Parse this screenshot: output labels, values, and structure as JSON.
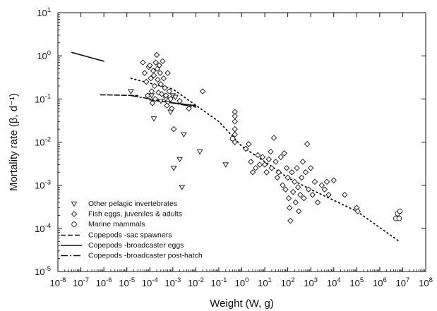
{
  "chart_data": {
    "type": "scatter",
    "title": "",
    "xlabel": "Weight (W, g)",
    "ylabel": "Mortality rate (β, d⁻¹)",
    "xscale": "log",
    "yscale": "log",
    "xlim": [
      1e-08,
      100000000.0
    ],
    "ylim": [
      1e-05,
      10
    ],
    "x_ticks": [
      {
        "v": 1e-08,
        "b": "10",
        "e": "-8"
      },
      {
        "v": 1e-07,
        "b": "10",
        "e": "-7"
      },
      {
        "v": 1e-06,
        "b": "10",
        "e": "-6"
      },
      {
        "v": 1e-05,
        "b": "10",
        "e": "-5"
      },
      {
        "v": 0.0001,
        "b": "10",
        "e": "-4"
      },
      {
        "v": 0.001,
        "b": "10",
        "e": "-3"
      },
      {
        "v": 0.01,
        "b": "10",
        "e": "-2"
      },
      {
        "v": 0.1,
        "b": "10",
        "e": "-1"
      },
      {
        "v": 1,
        "b": "10",
        "e": "0"
      },
      {
        "v": 10,
        "b": "10",
        "e": "1"
      },
      {
        "v": 100,
        "b": "10",
        "e": "2"
      },
      {
        "v": 1000,
        "b": "10",
        "e": "3"
      },
      {
        "v": 10000.0,
        "b": "10",
        "e": "4"
      },
      {
        "v": 100000.0,
        "b": "10",
        "e": "5"
      },
      {
        "v": 1000000.0,
        "b": "10",
        "e": "6"
      },
      {
        "v": 10000000.0,
        "b": "10",
        "e": "7"
      },
      {
        "v": 100000000.0,
        "b": "10",
        "e": "8"
      }
    ],
    "y_ticks": [
      {
        "v": 1e-05,
        "b": "10",
        "e": "-5"
      },
      {
        "v": 0.0001,
        "b": "10",
        "e": "-4"
      },
      {
        "v": 0.001,
        "b": "10",
        "e": "-3"
      },
      {
        "v": 0.01,
        "b": "10",
        "e": "-2"
      },
      {
        "v": 0.1,
        "b": "10",
        "e": "-1"
      },
      {
        "v": 1,
        "b": "10",
        "e": "0"
      },
      {
        "v": 10,
        "b": "10",
        "e": "1"
      }
    ],
    "grid": false,
    "legend_position": "bottom-left",
    "marker_series": [
      {
        "name": "Other pelagic invertebrates",
        "marker": "triangle-down",
        "points": [
          [
            1.5e-05,
            0.15
          ],
          [
            0.00012,
            0.12
          ],
          [
            0.00015,
            0.035
          ],
          [
            0.0003,
            0.09
          ],
          [
            0.0005,
            0.1
          ],
          [
            0.0006,
            0.08
          ],
          [
            0.0008,
            0.05
          ],
          [
            0.001,
            0.12
          ],
          [
            0.0013,
            0.11
          ],
          [
            0.0011,
            0.0025
          ],
          [
            0.002,
            0.004
          ],
          [
            0.0025,
            0.0009
          ],
          [
            0.003,
            0.015
          ],
          [
            0.015,
            0.006
          ],
          [
            0.2,
            0.003
          ]
        ]
      },
      {
        "name": "Fish eggs, juveniles & adults",
        "marker": "diamond",
        "points": [
          [
            5e-05,
            0.7
          ],
          [
            6e-05,
            0.4
          ],
          [
            7e-05,
            0.25
          ],
          [
            8e-05,
            0.12
          ],
          [
            9e-05,
            0.55
          ],
          [
            0.0001,
            0.6
          ],
          [
            0.00011,
            0.3
          ],
          [
            0.00012,
            0.15
          ],
          [
            0.00013,
            0.08
          ],
          [
            0.00014,
            0.45
          ],
          [
            0.00015,
            0.35
          ],
          [
            0.00016,
            0.2
          ],
          [
            0.00017,
            0.1
          ],
          [
            0.00018,
            0.7
          ],
          [
            0.0002,
            1.05
          ],
          [
            0.00021,
            0.5
          ],
          [
            0.00022,
            0.28
          ],
          [
            0.00024,
            0.14
          ],
          [
            0.00026,
            0.6
          ],
          [
            0.00028,
            0.4
          ],
          [
            0.0003,
            0.22
          ],
          [
            0.00033,
            0.13
          ],
          [
            0.00036,
            0.75
          ],
          [
            0.0004,
            0.3
          ],
          [
            0.00045,
            0.18
          ],
          [
            0.0005,
            0.12
          ],
          [
            0.00055,
            0.07
          ],
          [
            0.0006,
            0.4
          ],
          [
            0.0007,
            0.15
          ],
          [
            0.0008,
            0.1
          ],
          [
            0.0009,
            0.06
          ],
          [
            0.0011,
            0.02
          ],
          [
            0.002,
            0.09
          ],
          [
            0.005,
            0.06
          ],
          [
            0.02,
            0.15
          ],
          [
            0.5,
            0.05
          ],
          [
            0.5,
            0.04
          ],
          [
            0.5,
            0.03
          ],
          [
            0.5,
            0.02
          ],
          [
            0.5,
            0.015
          ],
          [
            0.5,
            0.01
          ],
          [
            1.5,
            0.007
          ],
          [
            2,
            0.009
          ],
          [
            2.5,
            0.0035
          ],
          [
            3,
            0.002
          ],
          [
            4,
            0.0025
          ],
          [
            5,
            0.005
          ],
          [
            6,
            0.003
          ],
          [
            8,
            0.0045
          ],
          [
            10,
            0.003
          ],
          [
            12,
            0.002
          ],
          [
            15,
            0.004
          ],
          [
            18,
            0.006
          ],
          [
            20,
            0.0025
          ],
          [
            25,
            0.0125
          ],
          [
            30,
            0.0035
          ],
          [
            35,
            0.0015
          ],
          [
            40,
            0.002
          ],
          [
            50,
            0.0045
          ],
          [
            60,
            0.001
          ],
          [
            70,
            0.0055
          ],
          [
            80,
            0.0008
          ],
          [
            90,
            0.0025
          ],
          [
            100,
            0.0015
          ],
          [
            110,
            0.0005
          ],
          [
            120,
            0.0003
          ],
          [
            130,
            0.00015
          ],
          [
            150,
            0.002
          ],
          [
            170,
            0.0007
          ],
          [
            200,
            0.0012
          ],
          [
            220,
            0.0004
          ],
          [
            250,
            0.0025
          ],
          [
            280,
            0.0009
          ],
          [
            300,
            0.00025
          ],
          [
            350,
            0.0006
          ],
          [
            400,
            0.0015
          ],
          [
            450,
            0.0035
          ],
          [
            500,
            0.0005
          ],
          [
            600,
            0.002
          ],
          [
            700,
            0.009
          ],
          [
            800,
            0.0008
          ],
          [
            1000,
            0.0025
          ],
          [
            1200,
            0.0006
          ],
          [
            1500,
            0.0012
          ],
          [
            2000,
            0.0004
          ],
          [
            3000,
            0.001
          ],
          [
            4000,
            0.0008
          ],
          [
            5000,
            0.0012
          ],
          [
            6000,
            0.0006
          ],
          [
            10000.0,
            0.0013
          ],
          [
            30000.0,
            0.0006
          ],
          [
            100000.0,
            0.0003
          ],
          [
            110000.0,
            0.00025
          ]
        ]
      },
      {
        "name": "Marine mammals",
        "marker": "circle",
        "points": [
          [
            0.4,
            0.012
          ],
          [
            5000000.0,
            0.00017
          ],
          [
            6000000.0,
            0.00022
          ],
          [
            7000000.0,
            0.00017
          ],
          [
            7500000.0,
            0.00025
          ]
        ]
      }
    ],
    "line_series": [
      {
        "name": "Copepods -sac spawners",
        "style": "dashed",
        "points": [
          [
            7e-07,
            0.125
          ],
          [
            3e-05,
            0.12
          ]
        ]
      },
      {
        "name": "Copepods -broadcaster eggs",
        "style": "solid",
        "points": [
          [
            4e-08,
            1.2
          ],
          [
            1e-06,
            0.75
          ]
        ]
      },
      {
        "name": "Copepods -broadcaster post-hatch",
        "style": "dashdot",
        "points": [
          [
            1.5e-05,
            0.12
          ],
          [
            0.01,
            0.065
          ]
        ]
      },
      {
        "name": "",
        "style": "solid",
        "points": [
          [
            0.0001,
            0.095
          ],
          [
            0.01,
            0.07
          ]
        ]
      },
      {
        "name": "",
        "style": "dotted",
        "points": [
          [
            1.5e-05,
            0.3
          ],
          [
            0.001,
            0.17
          ],
          [
            0.1,
            0.03
          ],
          [
            1,
            0.008
          ],
          [
            10,
            0.0035
          ],
          [
            100,
            0.0015
          ],
          [
            1000.0,
            0.0008
          ],
          [
            100000.0,
            0.00025
          ],
          [
            7000000.0,
            5e-05
          ]
        ]
      }
    ]
  }
}
